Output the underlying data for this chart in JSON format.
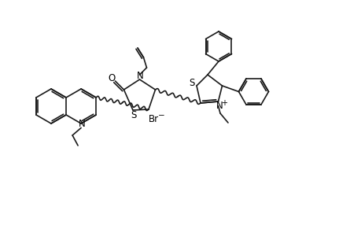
{
  "bg_color": "#ffffff",
  "line_color": "#1a1a1a",
  "lw": 1.2,
  "text_color": "#000000",
  "figsize": [
    4.6,
    3.0
  ],
  "dpi": 100,
  "xlim": [
    0,
    9.2
  ],
  "ylim": [
    0,
    6.0
  ]
}
